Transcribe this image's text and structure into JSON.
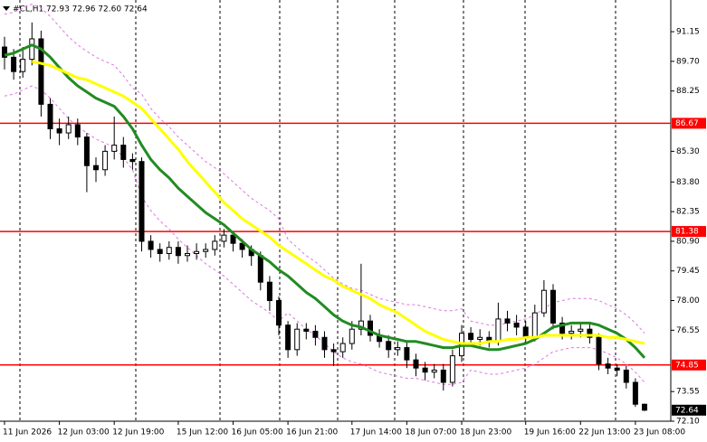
{
  "chart_data": {
    "type": "candlestick",
    "title": "#CL,H1  72.93 72.96 72.60 72.64",
    "categories": [
      "11 Jun 2026",
      null,
      null,
      null,
      null,
      null,
      "12 Jun 03:00",
      null,
      null,
      null,
      null,
      null,
      "12 Jun 19:00",
      null,
      null,
      null,
      null,
      null,
      null,
      "15 Jun 12:00",
      null,
      null,
      null,
      null,
      null,
      "16 Jun 05:00",
      null,
      null,
      null,
      null,
      null,
      "16 Jun 21:00",
      null,
      null,
      null,
      null,
      null,
      null,
      "17 Jun 14:00",
      null,
      null,
      null,
      null,
      null,
      "18 Jun 07:00",
      null,
      null,
      null,
      null,
      null,
      "18 Jun 23:00",
      null,
      null,
      null,
      null,
      null,
      null,
      "19 Jun 16:00",
      null,
      null,
      null,
      null,
      null,
      "22 Jun 13:00",
      null,
      null,
      null,
      null,
      null,
      "23 Jun 08:00",
      null
    ],
    "open": [
      90.4,
      89.9,
      89.2,
      89.8,
      90.8,
      87.6,
      86.4,
      86.2,
      86.6,
      86.0,
      84.6,
      84.4,
      85.3,
      85.6,
      84.9,
      84.8,
      80.9,
      80.5,
      80.3,
      80.6,
      80.2,
      80.3,
      80.4,
      80.5,
      80.9,
      81.2,
      80.8,
      80.5,
      80.2,
      78.9,
      78.0,
      76.8,
      75.6,
      76.6,
      76.5,
      76.2,
      75.6,
      75.5,
      75.9,
      76.6,
      77.0,
      76.3,
      76.0,
      75.6,
      75.7,
      75.1,
      74.7,
      74.5,
      74.6,
      74.0,
      75.3,
      76.4,
      76.1,
      76.2,
      76.0,
      77.1,
      76.9,
      76.7,
      76.2,
      77.4,
      78.5,
      76.9,
      76.4,
      76.5,
      76.6,
      76.2,
      74.9,
      74.7,
      74.6,
      74.0,
      72.93
    ],
    "high": [
      90.9,
      90.3,
      90.4,
      91.6,
      91.2,
      87.9,
      86.9,
      87.0,
      86.9,
      86.2,
      85.0,
      85.6,
      87.0,
      86.0,
      85.2,
      85.0,
      81.2,
      80.8,
      80.9,
      80.9,
      80.7,
      80.8,
      80.8,
      81.2,
      81.5,
      81.4,
      81.0,
      80.7,
      80.4,
      79.2,
      78.2,
      77.0,
      76.9,
      76.9,
      76.8,
      76.5,
      75.9,
      76.2,
      77.0,
      79.8,
      77.3,
      76.6,
      76.3,
      76.0,
      76.0,
      75.4,
      75.0,
      74.9,
      74.9,
      75.6,
      76.8,
      76.7,
      76.6,
      76.5,
      77.9,
      77.5,
      77.3,
      77.0,
      77.8,
      79.0,
      78.8,
      77.2,
      76.8,
      76.9,
      76.9,
      76.4,
      75.2,
      74.9,
      74.8,
      74.2,
      72.96
    ],
    "low": [
      89.3,
      88.8,
      88.9,
      89.5,
      87.0,
      85.9,
      85.6,
      85.9,
      85.6,
      83.3,
      83.8,
      84.1,
      84.9,
      84.5,
      84.4,
      80.4,
      80.1,
      79.9,
      80.0,
      79.8,
      79.9,
      80.0,
      80.1,
      80.2,
      80.6,
      80.4,
      80.1,
      79.7,
      78.5,
      77.5,
      76.3,
      75.2,
      75.3,
      76.1,
      75.8,
      75.2,
      74.8,
      75.2,
      75.6,
      76.3,
      76.0,
      75.7,
      75.2,
      75.3,
      74.7,
      74.3,
      74.1,
      74.2,
      73.6,
      73.8,
      75.0,
      75.8,
      75.8,
      75.7,
      75.8,
      76.5,
      76.3,
      75.9,
      76.0,
      77.2,
      76.6,
      76.1,
      76.1,
      76.2,
      75.9,
      74.6,
      74.4,
      74.3,
      73.7,
      72.8,
      72.6
    ],
    "close": [
      89.9,
      89.2,
      89.8,
      90.8,
      87.6,
      86.4,
      86.2,
      86.6,
      86.0,
      84.6,
      84.4,
      85.3,
      85.6,
      84.9,
      84.8,
      80.9,
      80.5,
      80.3,
      80.6,
      80.2,
      80.3,
      80.4,
      80.5,
      80.9,
      81.2,
      80.8,
      80.5,
      80.2,
      78.9,
      78.0,
      76.8,
      75.6,
      76.6,
      76.5,
      76.2,
      75.6,
      75.5,
      75.9,
      76.6,
      77.0,
      76.3,
      76.0,
      75.6,
      75.7,
      75.1,
      74.7,
      74.5,
      74.6,
      74.0,
      75.3,
      76.4,
      76.1,
      76.2,
      76.0,
      77.1,
      76.9,
      76.7,
      76.2,
      77.4,
      78.5,
      76.9,
      76.4,
      76.5,
      76.6,
      76.2,
      74.9,
      74.7,
      74.6,
      74.0,
      72.93,
      72.64
    ],
    "up_color": "#ffffff",
    "down_color": "#000000",
    "wick_color": "#000000",
    "series": [
      {
        "color": "#dd77dd",
        "style": "dashed",
        "values": [
          92.0,
          92.1,
          92.3,
          92.5,
          92.3,
          91.9,
          91.4,
          90.9,
          90.5,
          90.2,
          89.9,
          89.7,
          89.5,
          89.0,
          88.4,
          88.1,
          87.4,
          86.9,
          86.5,
          86.0,
          85.6,
          85.2,
          84.8,
          84.5,
          84.2,
          83.8,
          83.4,
          83.0,
          82.7,
          82.4,
          82.0,
          81.0,
          80.6,
          80.2,
          79.9,
          79.5,
          79.1,
          78.8,
          78.6,
          78.5,
          78.3,
          78.1,
          78.0,
          77.9,
          77.8,
          77.8,
          77.7,
          77.6,
          77.5,
          77.5,
          77.6,
          77.0,
          76.9,
          76.8,
          76.8,
          76.9,
          77.0,
          77.1,
          77.3,
          77.6,
          77.9,
          78.0,
          78.1,
          78.1,
          78.1,
          78.0,
          77.8,
          77.6,
          77.3,
          76.9,
          76.4
        ]
      },
      {
        "color": "#dd77dd",
        "style": "dashed",
        "values": [
          88.0,
          88.1,
          88.3,
          88.5,
          88.3,
          87.9,
          87.4,
          86.9,
          86.5,
          86.2,
          85.9,
          85.7,
          85.5,
          85.0,
          84.4,
          83.1,
          82.4,
          81.9,
          81.5,
          81.0,
          80.6,
          80.2,
          79.8,
          79.5,
          79.2,
          78.8,
          78.4,
          78.0,
          77.7,
          77.4,
          77.0,
          77.4,
          77.0,
          76.6,
          76.3,
          75.9,
          75.5,
          75.2,
          75.0,
          74.9,
          74.7,
          74.5,
          74.4,
          74.3,
          74.2,
          74.2,
          74.1,
          74.0,
          73.9,
          73.9,
          74.0,
          74.6,
          74.5,
          74.4,
          74.4,
          74.5,
          74.6,
          74.7,
          74.9,
          75.2,
          75.5,
          75.6,
          75.7,
          75.7,
          75.7,
          75.6,
          75.4,
          75.2,
          74.9,
          74.5,
          74.0
        ]
      },
      {
        "color": "#228b22",
        "style": "solid",
        "values": [
          90.0,
          90.1,
          90.3,
          90.5,
          90.3,
          89.9,
          89.4,
          88.9,
          88.5,
          88.2,
          87.9,
          87.7,
          87.5,
          87.0,
          86.4,
          85.6,
          84.9,
          84.4,
          84.0,
          83.5,
          83.1,
          82.7,
          82.3,
          82.0,
          81.7,
          81.3,
          80.9,
          80.5,
          80.2,
          79.9,
          79.5,
          79.2,
          78.8,
          78.4,
          78.1,
          77.7,
          77.3,
          77.0,
          76.8,
          76.7,
          76.5,
          76.3,
          76.2,
          76.1,
          76.0,
          76.0,
          75.9,
          75.8,
          75.7,
          75.7,
          75.8,
          75.8,
          75.7,
          75.6,
          75.6,
          75.7,
          75.8,
          75.9,
          76.1,
          76.4,
          76.7,
          76.8,
          76.9,
          76.9,
          76.9,
          76.8,
          76.6,
          76.4,
          76.1,
          75.7,
          75.2
        ]
      },
      {
        "color": "#ffff00",
        "style": "solid",
        "values": [
          null,
          null,
          null,
          89.7,
          89.6,
          89.5,
          89.3,
          89.1,
          88.9,
          88.8,
          88.6,
          88.4,
          88.2,
          88.0,
          87.7,
          87.4,
          86.9,
          86.4,
          85.9,
          85.4,
          84.8,
          84.3,
          83.8,
          83.3,
          82.8,
          82.4,
          82.0,
          81.7,
          81.4,
          81.1,
          80.7,
          80.4,
          80.1,
          79.8,
          79.5,
          79.2,
          79.0,
          78.7,
          78.5,
          78.3,
          78.1,
          77.8,
          77.6,
          77.4,
          77.1,
          76.8,
          76.5,
          76.3,
          76.1,
          76.0,
          75.9,
          75.9,
          75.9,
          76.0,
          76.0,
          76.1,
          76.1,
          76.2,
          76.2,
          76.3,
          76.3,
          76.3,
          76.3,
          76.3,
          76.3,
          76.3,
          76.2,
          76.2,
          76.1,
          76.0,
          75.9
        ]
      }
    ],
    "levels": [
      86.67,
      81.38,
      74.85
    ],
    "level_color": "#ff0000",
    "ylim": [
      72.1,
      92.7
    ],
    "yticks": [
      {
        "value": 72.1,
        "label": "72.10"
      },
      73.55,
      76.55,
      {
        "value": 78.0,
        "label": "78.00"
      },
      79.45,
      {
        "value": 80.9,
        "label": "80.90"
      },
      82.35,
      {
        "value": 83.8,
        "label": "83.80"
      },
      {
        "value": 85.3,
        "label": "85.30"
      },
      88.25,
      {
        "value": 89.7,
        "label": "89.70"
      },
      91.15
    ]
  }
}
